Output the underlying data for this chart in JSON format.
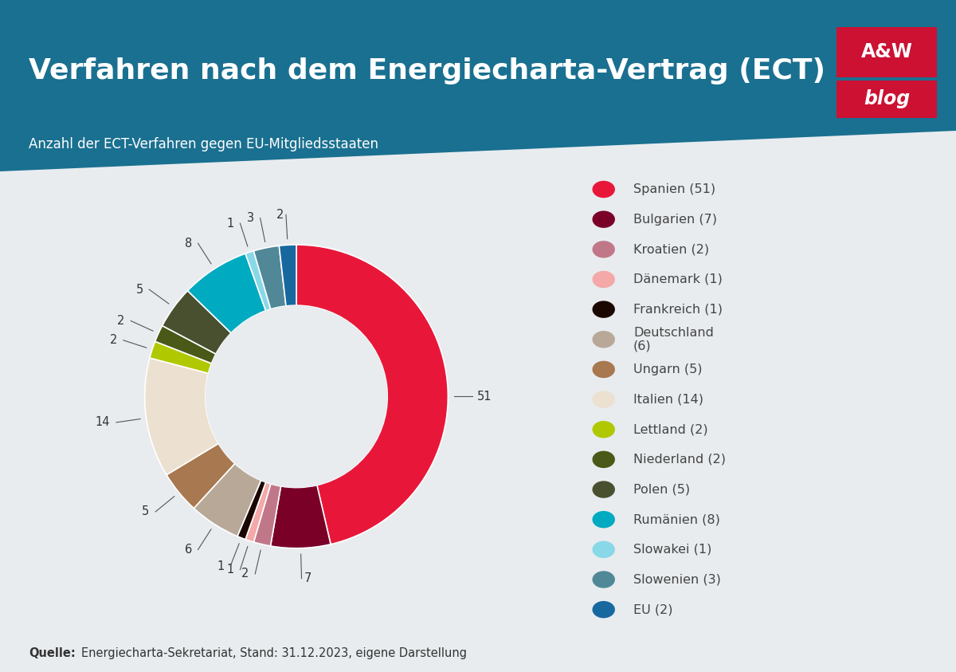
{
  "title": "Verfahren nach dem Energiecharta-Vertrag (ECT)",
  "subtitle": "Anzahl der ECT-Verfahren gegen EU-Mitgliedsstaaten",
  "source_bold": "Quelle:",
  "source_rest": " Energiecharta-Sekretariat, Stand: 31.12.2023, eigene Darstellung",
  "bg_color": "#e8ecef",
  "header_color": "#1a7090",
  "categories": [
    "Spanien",
    "Bulgarien",
    "Kroatien",
    "Dänemark",
    "Frankreich",
    "Deutschland",
    "Ungarn",
    "Italien",
    "Lettland",
    "Niederland",
    "Polen",
    "Rumänien",
    "Slowakei",
    "Slowenien",
    "EU"
  ],
  "values": [
    51,
    7,
    2,
    1,
    1,
    6,
    5,
    14,
    2,
    2,
    5,
    8,
    1,
    3,
    2
  ],
  "colors": [
    "#e8173a",
    "#7a0028",
    "#c07888",
    "#f4a8a8",
    "#1a0800",
    "#b8a898",
    "#a87850",
    "#ece0d0",
    "#b0c800",
    "#4a5818",
    "#485030",
    "#00aac0",
    "#88d8e8",
    "#508898",
    "#1868a0"
  ],
  "legend_labels": [
    "Spanien (51)",
    "Bulgarien (7)",
    "Kroatien (2)",
    "Dänemark (1)",
    "Frankreich (1)",
    "Deutschland\n(6)",
    "Ungarn (5)",
    "Italien (14)",
    "Lettland (2)",
    "Niederland (2)",
    "Polen (5)",
    "Rumänien (8)",
    "Slowakei (1)",
    "Slowenien (3)",
    "EU (2)"
  ],
  "aw_blog_color": "#cc1133",
  "label_fontsize": 10.5,
  "legend_fontsize": 11.5,
  "title_fontsize": 26,
  "subtitle_fontsize": 12
}
